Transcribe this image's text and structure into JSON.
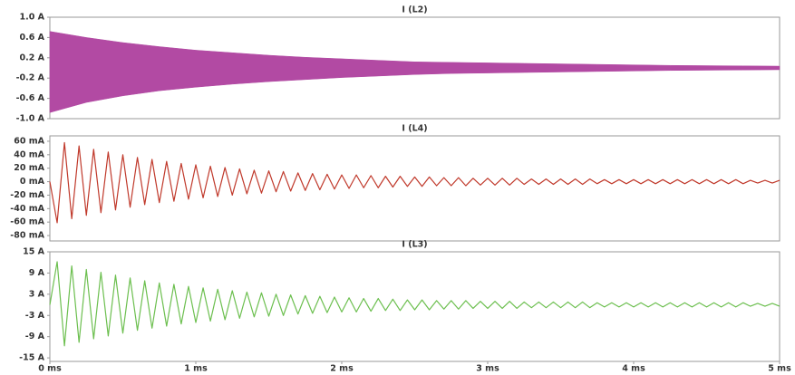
{
  "chart_data": [
    {
      "type": "band",
      "title": "I (L2)",
      "color": "#b24aa3",
      "xlim": [
        0,
        5
      ],
      "ylim": [
        -1,
        1
      ],
      "yticks": [
        {
          "value": 1.0,
          "label": "1.0 A"
        },
        {
          "value": 0.6,
          "label": "0.6 A"
        },
        {
          "value": 0.2,
          "label": "0.2 A"
        },
        {
          "value": -0.2,
          "label": "-0.2 A"
        },
        {
          "value": -0.6,
          "label": "-0.6 A"
        },
        {
          "value": -1.0,
          "label": "-1.0 A"
        }
      ],
      "x": [
        0,
        0.25,
        0.5,
        0.75,
        1,
        1.25,
        1.5,
        1.75,
        2,
        2.25,
        2.5,
        2.75,
        3,
        3.25,
        3.5,
        3.75,
        4,
        4.25,
        4.5,
        4.75,
        5
      ],
      "upper": [
        0.72,
        0.6,
        0.5,
        0.42,
        0.35,
        0.3,
        0.25,
        0.21,
        0.18,
        0.15,
        0.12,
        0.11,
        0.1,
        0.09,
        0.08,
        0.07,
        0.06,
        0.05,
        0.045,
        0.04,
        0.035
      ],
      "lower": [
        -0.88,
        -0.68,
        -0.55,
        -0.45,
        -0.38,
        -0.32,
        -0.27,
        -0.23,
        -0.19,
        -0.16,
        -0.13,
        -0.11,
        -0.1,
        -0.09,
        -0.08,
        -0.07,
        -0.06,
        -0.05,
        -0.045,
        -0.04,
        -0.035
      ]
    },
    {
      "type": "line",
      "title": "I (L4)",
      "color": "#c0392b",
      "xlim": [
        0,
        5
      ],
      "ylim": [
        -88,
        68
      ],
      "yticks": [
        {
          "value": 60,
          "label": "60 mA"
        },
        {
          "value": 40,
          "label": "40 mA"
        },
        {
          "value": 20,
          "label": "20 mA"
        },
        {
          "value": 0,
          "label": "0 mA"
        },
        {
          "value": -20,
          "label": "-20 mA"
        },
        {
          "value": -40,
          "label": "-40 mA"
        },
        {
          "value": -60,
          "label": "-60 mA"
        },
        {
          "value": -80,
          "label": "-80 mA"
        }
      ],
      "x": [
        0,
        0.05,
        0.1,
        0.15,
        0.2,
        0.25,
        0.3,
        0.35,
        0.4,
        0.45,
        0.5,
        0.55,
        0.6,
        0.65,
        0.7,
        0.75,
        0.8,
        0.85,
        0.9,
        0.95,
        1,
        1.05,
        1.1,
        1.15,
        1.2,
        1.25,
        1.3,
        1.35,
        1.4,
        1.45,
        1.5,
        1.55,
        1.6,
        1.65,
        1.7,
        1.75,
        1.8,
        1.85,
        1.9,
        1.95,
        2,
        2.05,
        2.1,
        2.15,
        2.2,
        2.25,
        2.3,
        2.35,
        2.4,
        2.45,
        2.5,
        2.55,
        2.6,
        2.65,
        2.7,
        2.75,
        2.8,
        2.85,
        2.9,
        2.95,
        3,
        3.05,
        3.1,
        3.15,
        3.2,
        3.25,
        3.3,
        3.35,
        3.4,
        3.45,
        3.5,
        3.55,
        3.6,
        3.65,
        3.7,
        3.75,
        3.8,
        3.85,
        3.9,
        3.95,
        4,
        4.05,
        4.1,
        4.15,
        4.2,
        4.25,
        4.3,
        4.35,
        4.4,
        4.45,
        4.5,
        4.55,
        4.6,
        4.65,
        4.7,
        4.75,
        4.8,
        4.85,
        4.9,
        4.95,
        5
      ],
      "values": [
        0,
        -61,
        58,
        -55,
        53,
        -50,
        48,
        -46,
        44,
        -42,
        40,
        -38,
        36,
        -34,
        33,
        -31,
        30,
        -29,
        27,
        -26,
        25,
        -24,
        23,
        -22,
        21,
        -20,
        19,
        -18,
        17,
        -17,
        16,
        -15,
        15,
        -14,
        13,
        -13,
        12,
        -12,
        11,
        -11,
        10,
        -10,
        10,
        -9,
        9,
        -9,
        8,
        -8,
        8,
        -7,
        7,
        -7,
        7,
        -6,
        6,
        -6,
        6,
        -6,
        5,
        -5,
        5,
        -5,
        5,
        -5,
        5,
        -4,
        4,
        -4,
        4,
        -4,
        4,
        -4,
        4,
        -4,
        4,
        -3,
        3,
        -3,
        3,
        -3,
        3,
        -3,
        3,
        -3,
        3,
        -3,
        3,
        -3,
        3,
        -3,
        3,
        -3,
        3,
        -3,
        3,
        -3,
        2,
        -2,
        2,
        -2,
        2
      ]
    },
    {
      "type": "line",
      "title": "I (L3)",
      "color": "#6cbf4f",
      "xlim": [
        0,
        5
      ],
      "ylim": [
        -16,
        15
      ],
      "yticks": [
        {
          "value": 15,
          "label": "15 A"
        },
        {
          "value": 9,
          "label": "9 A"
        },
        {
          "value": 3,
          "label": "3 A"
        },
        {
          "value": -3,
          "label": "-3 A"
        },
        {
          "value": -9,
          "label": "-9 A"
        },
        {
          "value": -15,
          "label": "-15 A"
        }
      ],
      "xticks": [
        {
          "value": 0,
          "label": "0 ms"
        },
        {
          "value": 1,
          "label": "1 ms"
        },
        {
          "value": 2,
          "label": "2 ms"
        },
        {
          "value": 3,
          "label": "3 ms"
        },
        {
          "value": 4,
          "label": "4 ms"
        },
        {
          "value": 5,
          "label": "5 ms"
        }
      ],
      "x": [
        0,
        0.05,
        0.1,
        0.15,
        0.2,
        0.25,
        0.3,
        0.35,
        0.4,
        0.45,
        0.5,
        0.55,
        0.6,
        0.65,
        0.7,
        0.75,
        0.8,
        0.85,
        0.9,
        0.95,
        1,
        1.05,
        1.1,
        1.15,
        1.2,
        1.25,
        1.3,
        1.35,
        1.4,
        1.45,
        1.5,
        1.55,
        1.6,
        1.65,
        1.7,
        1.75,
        1.8,
        1.85,
        1.9,
        1.95,
        2,
        2.05,
        2.1,
        2.15,
        2.2,
        2.25,
        2.3,
        2.35,
        2.4,
        2.45,
        2.5,
        2.55,
        2.6,
        2.65,
        2.7,
        2.75,
        2.8,
        2.85,
        2.9,
        2.95,
        3,
        3.05,
        3.1,
        3.15,
        3.2,
        3.25,
        3.3,
        3.35,
        3.4,
        3.45,
        3.5,
        3.55,
        3.6,
        3.65,
        3.7,
        3.75,
        3.8,
        3.85,
        3.9,
        3.95,
        4,
        4.05,
        4.1,
        4.15,
        4.2,
        4.25,
        4.3,
        4.35,
        4.4,
        4.45,
        4.5,
        4.55,
        4.6,
        4.65,
        4.7,
        4.75,
        4.8,
        4.85,
        4.9,
        4.95,
        5
      ],
      "values": [
        0,
        12.2,
        -11.6,
        11,
        -10.6,
        10,
        -9.6,
        9.2,
        -8.8,
        8.4,
        -8,
        7.6,
        -7.2,
        6.8,
        -6.6,
        6.2,
        -6,
        5.8,
        -5.4,
        5.2,
        -5,
        4.8,
        -4.6,
        4.4,
        -4.2,
        4,
        -3.8,
        3.6,
        -3.4,
        3.4,
        -3.2,
        3,
        -3,
        2.8,
        -2.6,
        2.6,
        -2.4,
        2.4,
        -2.2,
        2.2,
        -2,
        2,
        -2,
        1.8,
        -1.8,
        1.8,
        -1.6,
        1.6,
        -1.6,
        1.4,
        -1.4,
        1.4,
        -1.4,
        1.2,
        -1.2,
        1.2,
        -1.2,
        1.2,
        -1,
        1,
        -1,
        1,
        -1,
        1,
        -1,
        0.8,
        -0.8,
        0.8,
        -0.8,
        0.8,
        -0.8,
        0.8,
        -0.8,
        0.8,
        -0.8,
        0.6,
        -0.6,
        0.6,
        -0.6,
        0.6,
        -0.6,
        0.6,
        -0.6,
        0.6,
        -0.6,
        0.6,
        -0.6,
        0.6,
        -0.6,
        0.6,
        -0.6,
        0.6,
        -0.6,
        0.6,
        -0.6,
        0.6,
        -0.4,
        0.4,
        -0.4,
        0.4,
        -0.4
      ]
    }
  ]
}
